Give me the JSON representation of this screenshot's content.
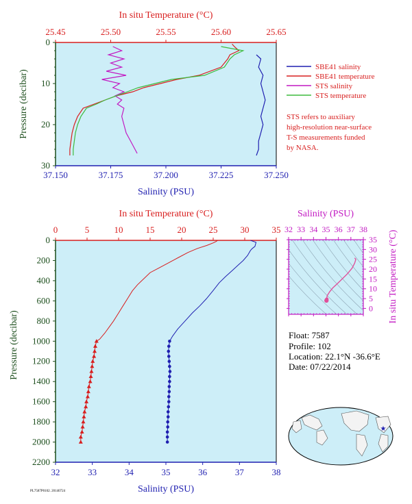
{
  "chart_data": [
    {
      "id": "near_surface",
      "type": "line",
      "top_xlabel": "In situ Temperature (°C)",
      "bottom_xlabel": "Salinity (PSU)",
      "ylabel": "Pressure (decibar)",
      "temp_lim": [
        25.45,
        25.65
      ],
      "temp_ticks": [
        "25.45",
        "25.50",
        "25.55",
        "25.60",
        "25.65"
      ],
      "sal_lim": [
        37.15,
        37.25
      ],
      "sal_ticks": [
        "37.150",
        "37.175",
        "37.200",
        "37.225",
        "37.250"
      ],
      "ylim": [
        0,
        30
      ],
      "y_ticks": [
        "0",
        "10",
        "20",
        "30"
      ],
      "legend": [
        {
          "name": "SBE41 salinity",
          "color": "#1f1fb0"
        },
        {
          "name": "SBE41 temperature",
          "color": "#d81e1e"
        },
        {
          "name": "STS salinity",
          "color": "#c219c2"
        },
        {
          "name": "STS temperature",
          "color": "#3dbb3d"
        }
      ],
      "note_lines": [
        "STS refers to auxiliary",
        "high-resolution near-surface",
        "T-S measurements funded",
        "by NASA."
      ],
      "series": [
        {
          "name": "SBE41 salinity",
          "axis": "salinity",
          "color": "#1f1fb0",
          "points": [
            [
              37.241,
              3
            ],
            [
              37.243,
              4
            ],
            [
              37.242,
              6
            ],
            [
              37.244,
              8
            ],
            [
              37.243,
              10
            ],
            [
              37.244,
              12
            ],
            [
              37.245,
              14
            ],
            [
              37.244,
              16
            ],
            [
              37.243,
              18
            ],
            [
              37.244,
              20
            ],
            [
              37.243,
              22
            ],
            [
              37.242,
              24
            ],
            [
              37.242,
              26
            ],
            [
              37.241,
              27.5
            ]
          ]
        },
        {
          "name": "SBE41 temperature",
          "axis": "temperature",
          "color": "#d81e1e",
          "points": [
            [
              25.61,
              0.4
            ],
            [
              25.612,
              1
            ],
            [
              25.616,
              2
            ],
            [
              25.608,
              3
            ],
            [
              25.606,
              4
            ],
            [
              25.6,
              6
            ],
            [
              25.58,
              8
            ],
            [
              25.56,
              9
            ],
            [
              25.545,
              10
            ],
            [
              25.53,
              11
            ],
            [
              25.52,
              12
            ],
            [
              25.505,
              13
            ],
            [
              25.495,
              14
            ],
            [
              25.485,
              15
            ],
            [
              25.475,
              16
            ],
            [
              25.47,
              18
            ],
            [
              25.467,
              20
            ],
            [
              25.465,
              22
            ],
            [
              25.464,
              24
            ],
            [
              25.463,
              26
            ],
            [
              25.463,
              27.5
            ]
          ]
        },
        {
          "name": "STS salinity",
          "axis": "salinity",
          "color": "#c219c2",
          "points": [
            [
              37.176,
              1
            ],
            [
              37.18,
              2
            ],
            [
              37.174,
              3
            ],
            [
              37.181,
              4
            ],
            [
              37.175,
              5
            ],
            [
              37.18,
              6
            ],
            [
              37.173,
              7
            ],
            [
              37.182,
              8
            ],
            [
              37.171,
              9
            ],
            [
              37.179,
              10
            ],
            [
              37.176,
              11
            ],
            [
              37.181,
              12
            ],
            [
              37.177,
              13
            ],
            [
              37.18,
              14
            ],
            [
              37.178,
              15
            ],
            [
              37.181,
              16
            ],
            [
              37.18,
              18
            ],
            [
              37.181,
              20
            ],
            [
              37.182,
              22
            ],
            [
              37.184,
              24
            ],
            [
              37.186,
              26
            ],
            [
              37.187,
              27
            ]
          ]
        },
        {
          "name": "STS temperature",
          "axis": "temperature",
          "color": "#3dbb3d",
          "points": [
            [
              25.6,
              1
            ],
            [
              25.62,
              2
            ],
            [
              25.612,
              3
            ],
            [
              25.608,
              4
            ],
            [
              25.603,
              6
            ],
            [
              25.585,
              8
            ],
            [
              25.555,
              9
            ],
            [
              25.54,
              10
            ],
            [
              25.525,
              11
            ],
            [
              25.515,
              12
            ],
            [
              25.505,
              13
            ],
            [
              25.495,
              14
            ],
            [
              25.487,
              15
            ],
            [
              25.478,
              16
            ],
            [
              25.473,
              18
            ],
            [
              25.47,
              20
            ],
            [
              25.468,
              22
            ],
            [
              25.467,
              24
            ],
            [
              25.466,
              26
            ],
            [
              25.466,
              27.5
            ]
          ]
        }
      ]
    },
    {
      "id": "full_profile",
      "type": "line",
      "top_xlabel": "In situ Temperature (°C)",
      "bottom_xlabel": "Salinity (PSU)",
      "ylabel": "Pressure (decibar)",
      "temp_lim": [
        0,
        35
      ],
      "temp_ticks": [
        "0",
        "5",
        "10",
        "15",
        "20",
        "25",
        "30",
        "35"
      ],
      "sal_lim": [
        32,
        38
      ],
      "sal_ticks": [
        "32",
        "33",
        "34",
        "35",
        "36",
        "37",
        "38"
      ],
      "ylim": [
        0,
        2200
      ],
      "y_ticks": [
        "0",
        "200",
        "400",
        "600",
        "800",
        "1000",
        "1200",
        "1400",
        "1600",
        "1800",
        "2000",
        "2200"
      ],
      "series": [
        {
          "name": "temperature",
          "axis": "temperature",
          "color": "#d81e1e",
          "points": [
            [
              25.7,
              0
            ],
            [
              25.5,
              10
            ],
            [
              25.0,
              25
            ],
            [
              24.0,
              50
            ],
            [
              22.5,
              80
            ],
            [
              21.0,
              120
            ],
            [
              19.5,
              170
            ],
            [
              18.0,
              220
            ],
            [
              16.5,
              270
            ],
            [
              15.0,
              320
            ],
            [
              14.0,
              380
            ],
            [
              13.0,
              440
            ],
            [
              12.2,
              500
            ],
            [
              11.5,
              570
            ],
            [
              10.7,
              650
            ],
            [
              10.0,
              720
            ],
            [
              9.2,
              800
            ],
            [
              8.5,
              860
            ],
            [
              7.8,
              920
            ],
            [
              7.0,
              980
            ],
            [
              6.5,
              1000
            ]
          ],
          "markers": [
            [
              6.5,
              1000
            ],
            [
              6.3,
              1050
            ],
            [
              6.2,
              1100
            ],
            [
              6.1,
              1150
            ],
            [
              5.9,
              1200
            ],
            [
              5.8,
              1250
            ],
            [
              5.7,
              1300
            ],
            [
              5.6,
              1350
            ],
            [
              5.5,
              1400
            ],
            [
              5.3,
              1450
            ],
            [
              5.2,
              1500
            ],
            [
              5.1,
              1550
            ],
            [
              4.9,
              1600
            ],
            [
              4.8,
              1650
            ],
            [
              4.6,
              1700
            ],
            [
              4.5,
              1750
            ],
            [
              4.4,
              1800
            ],
            [
              4.3,
              1850
            ],
            [
              4.2,
              1900
            ],
            [
              4.0,
              1950
            ],
            [
              4.0,
              2000
            ]
          ]
        },
        {
          "name": "salinity",
          "axis": "salinity",
          "color": "#1f1fb0",
          "points": [
            [
              37.3,
              0
            ],
            [
              37.45,
              20
            ],
            [
              37.42,
              60
            ],
            [
              37.35,
              80
            ],
            [
              37.3,
              100
            ],
            [
              37.22,
              150
            ],
            [
              37.1,
              200
            ],
            [
              36.95,
              250
            ],
            [
              36.8,
              300
            ],
            [
              36.62,
              360
            ],
            [
              36.45,
              420
            ],
            [
              36.28,
              500
            ],
            [
              36.1,
              580
            ],
            [
              35.92,
              650
            ],
            [
              35.72,
              720
            ],
            [
              35.52,
              800
            ],
            [
              35.32,
              880
            ],
            [
              35.18,
              950
            ],
            [
              35.1,
              1000
            ]
          ],
          "markers": [
            [
              35.1,
              1000
            ],
            [
              35.08,
              1050
            ],
            [
              35.07,
              1100
            ],
            [
              35.08,
              1150
            ],
            [
              35.09,
              1200
            ],
            [
              35.1,
              1250
            ],
            [
              35.11,
              1300
            ],
            [
              35.1,
              1350
            ],
            [
              35.1,
              1400
            ],
            [
              35.09,
              1450
            ],
            [
              35.09,
              1500
            ],
            [
              35.08,
              1550
            ],
            [
              35.08,
              1600
            ],
            [
              35.07,
              1650
            ],
            [
              35.06,
              1700
            ],
            [
              35.06,
              1750
            ],
            [
              35.05,
              1800
            ],
            [
              35.05,
              1850
            ],
            [
              35.04,
              1900
            ],
            [
              35.04,
              1950
            ],
            [
              35.04,
              2000
            ]
          ]
        }
      ]
    },
    {
      "id": "ts_diagram",
      "type": "scatter",
      "top_xlabel": "Salinity (PSU)",
      "right_ylabel": "In situ Temperature (°C)",
      "sal_lim": [
        32,
        38
      ],
      "sal_ticks": [
        "32",
        "33",
        "34",
        "35",
        "36",
        "37",
        "38"
      ],
      "temp_lim": [
        -3,
        35
      ],
      "temp_ticks": [
        "0",
        "5",
        "10",
        "15",
        "20",
        "25",
        "30",
        "35"
      ],
      "series": [
        {
          "name": "T-S curve",
          "color": "#e0509a",
          "points": [
            [
              35.04,
              4.0
            ],
            [
              35.05,
              4.5
            ],
            [
              35.07,
              5.5
            ],
            [
              35.1,
              6.5
            ],
            [
              35.3,
              8.5
            ],
            [
              35.55,
              10.5
            ],
            [
              35.9,
              12.5
            ],
            [
              36.3,
              15.0
            ],
            [
              36.7,
              17.5
            ],
            [
              37.1,
              20.5
            ],
            [
              37.3,
              23.0
            ],
            [
              37.4,
              25.0
            ],
            [
              37.3,
              25.7
            ]
          ]
        }
      ]
    }
  ],
  "float_info": {
    "float": "Float:  7587",
    "profile": "Profile:  102",
    "location": "Location:  22.1°N  -36.6°E",
    "date": "Date:  07/22/2014"
  },
  "footer_code": "PL7587P0102. 20140724",
  "colors": {
    "plot_bg": "#cdeef8",
    "temperature": "#d81e1e",
    "salinity": "#1f1fb0",
    "sts_salinity": "#c219c2",
    "sts_temperature": "#3dbb3d",
    "pressure_axis": "#1b4d1b",
    "ts_axis": "#c219c2"
  }
}
